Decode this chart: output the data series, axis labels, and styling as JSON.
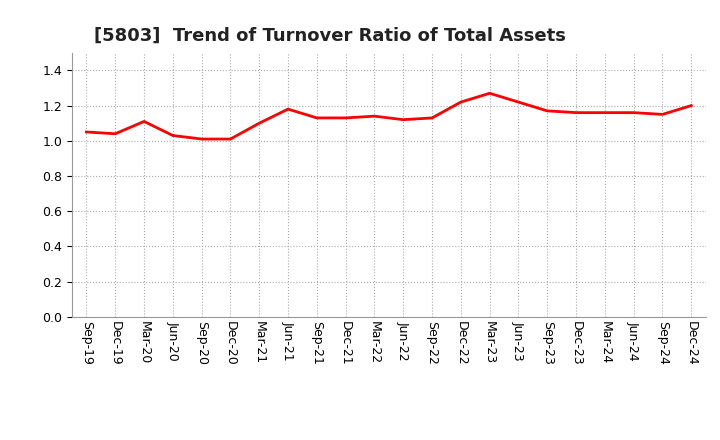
{
  "title": "[5803]  Trend of Turnover Ratio of Total Assets",
  "x_labels": [
    "Sep-19",
    "Dec-19",
    "Mar-20",
    "Jun-20",
    "Sep-20",
    "Dec-20",
    "Mar-21",
    "Jun-21",
    "Sep-21",
    "Dec-21",
    "Mar-22",
    "Jun-22",
    "Sep-22",
    "Dec-22",
    "Mar-23",
    "Jun-23",
    "Sep-23",
    "Dec-23",
    "Mar-24",
    "Jun-24",
    "Sep-24",
    "Dec-24"
  ],
  "y_values": [
    1.05,
    1.04,
    1.11,
    1.03,
    1.01,
    1.01,
    1.1,
    1.18,
    1.13,
    1.13,
    1.14,
    1.12,
    1.13,
    1.22,
    1.27,
    1.22,
    1.17,
    1.16,
    1.16,
    1.16,
    1.15,
    1.2
  ],
  "ylim": [
    0.0,
    1.5
  ],
  "yticks": [
    0.0,
    0.2,
    0.4,
    0.6,
    0.8,
    1.0,
    1.2,
    1.4
  ],
  "line_color": "#ff0000",
  "line_width": 2.0,
  "bg_color": "#ffffff",
  "grid_color": "#aaaaaa",
  "title_fontsize": 13,
  "tick_fontsize": 9,
  "title_color": "#222222"
}
